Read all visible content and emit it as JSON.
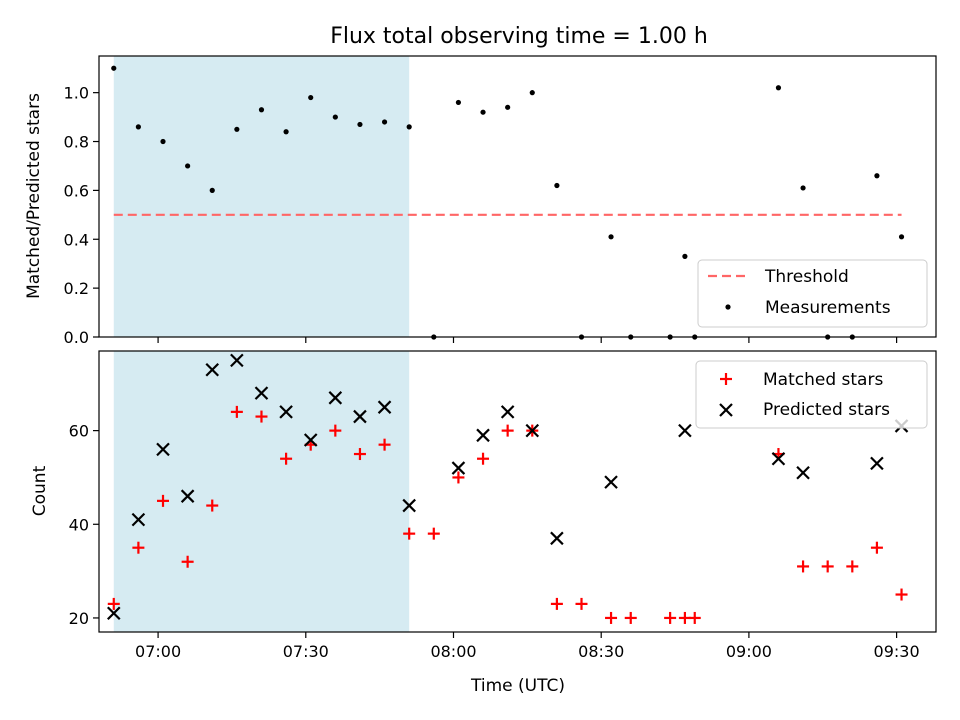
{
  "chart_data": [
    {
      "type": "scatter",
      "title": "Flux total observing time = 1.00 h",
      "xlabel": "",
      "ylabel": "Matched/Predicted stars",
      "xlim": [
        "06:48",
        "09:38"
      ],
      "ylim": [
        0,
        1.15
      ],
      "yticks": [
        "0.0",
        "0.2",
        "0.4",
        "0.6",
        "0.8",
        "1.0"
      ],
      "xticks": [
        "07:00",
        "07:30",
        "08:00",
        "08:30",
        "09:00",
        "09:30"
      ],
      "shaded_span": [
        "06:51",
        "07:51"
      ],
      "shade_color": "#add8e6",
      "threshold": {
        "name": "Threshold",
        "value": 0.5,
        "x": [
          "06:51",
          "09:31"
        ],
        "color": "#ff7070"
      },
      "series": [
        {
          "name": "Measurements",
          "marker": "dot",
          "color": "#000000",
          "x": [
            "06:51",
            "06:56",
            "07:01",
            "07:06",
            "07:11",
            "07:16",
            "07:21",
            "07:26",
            "07:31",
            "07:36",
            "07:41",
            "07:46",
            "07:51",
            "07:56",
            "08:01",
            "08:06",
            "08:11",
            "08:16",
            "08:21",
            "08:26",
            "08:32",
            "08:36",
            "08:44",
            "08:47",
            "08:49",
            "09:06",
            "09:11",
            "09:16",
            "09:21",
            "09:26",
            "09:31"
          ],
          "y": [
            1.1,
            0.86,
            0.8,
            0.7,
            0.6,
            0.85,
            0.93,
            0.84,
            0.98,
            0.9,
            0.87,
            0.88,
            0.86,
            0.0,
            0.96,
            0.92,
            0.94,
            1.0,
            0.62,
            0.0,
            0.41,
            0.0,
            0.0,
            0.33,
            0.0,
            1.02,
            0.61,
            0.0,
            0.0,
            0.66,
            0.41
          ]
        }
      ],
      "legend": [
        "Threshold",
        "Measurements"
      ],
      "legend_position": "lower-right"
    },
    {
      "type": "scatter",
      "title": "",
      "xlabel": "Time (UTC)",
      "ylabel": "Count",
      "xlim": [
        "06:48",
        "09:38"
      ],
      "ylim": [
        17,
        77
      ],
      "yticks": [
        "20",
        "40",
        "60"
      ],
      "xticks": [
        "07:00",
        "07:30",
        "08:00",
        "08:30",
        "09:00",
        "09:30"
      ],
      "shaded_span": [
        "06:51",
        "07:51"
      ],
      "shade_color": "#add8e6",
      "series": [
        {
          "name": "Matched stars",
          "marker": "plus",
          "color": "#ff0000",
          "x": [
            "06:51",
            "06:56",
            "07:01",
            "07:06",
            "07:11",
            "07:16",
            "07:21",
            "07:26",
            "07:31",
            "07:36",
            "07:41",
            "07:46",
            "07:51",
            "07:56",
            "08:01",
            "08:06",
            "08:11",
            "08:16",
            "08:21",
            "08:26",
            "08:32",
            "08:36",
            "08:44",
            "08:47",
            "08:49",
            "09:06",
            "09:11",
            "09:16",
            "09:21",
            "09:26",
            "09:31"
          ],
          "y": [
            23,
            35,
            45,
            32,
            44,
            64,
            63,
            54,
            57,
            60,
            55,
            57,
            38,
            38,
            50,
            54,
            60,
            60,
            23,
            23,
            20,
            20,
            20,
            20,
            20,
            55,
            31,
            31,
            31,
            35,
            25
          ]
        },
        {
          "name": "Predicted stars",
          "marker": "x",
          "color": "#000000",
          "x": [
            "06:51",
            "06:56",
            "07:01",
            "07:06",
            "07:11",
            "07:16",
            "07:21",
            "07:26",
            "07:31",
            "07:36",
            "07:41",
            "07:46",
            "07:51",
            "08:01",
            "08:06",
            "08:11",
            "08:16",
            "08:21",
            "08:32",
            "08:47",
            "09:06",
            "09:11",
            "09:26",
            "09:31"
          ],
          "y": [
            21,
            41,
            56,
            46,
            73,
            75,
            68,
            64,
            58,
            67,
            63,
            65,
            44,
            52,
            59,
            64,
            60,
            37,
            49,
            60,
            54,
            51,
            53,
            61
          ]
        }
      ],
      "legend": [
        "Matched stars",
        "Predicted stars"
      ],
      "legend_position": "upper-right"
    }
  ]
}
